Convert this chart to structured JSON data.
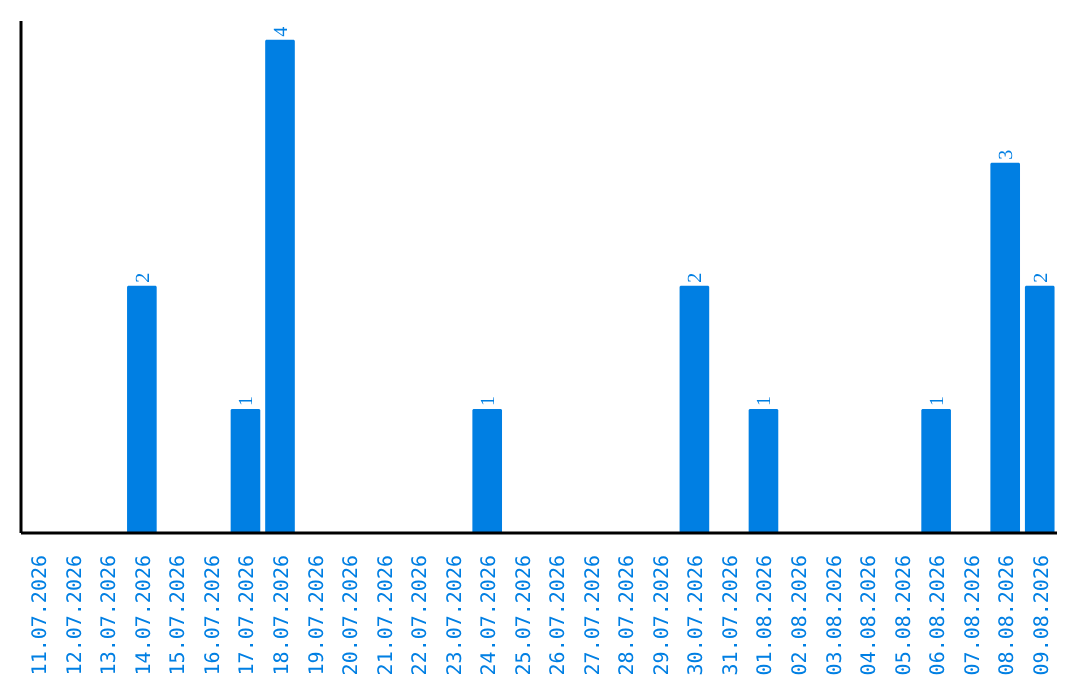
{
  "chart_data": {
    "type": "bar",
    "categories": [
      "11.07.2026",
      "12.07.2026",
      "13.07.2026",
      "14.07.2026",
      "15.07.2026",
      "16.07.2026",
      "17.07.2026",
      "18.07.2026",
      "19.07.2026",
      "20.07.2026",
      "21.07.2026",
      "22.07.2026",
      "23.07.2026",
      "24.07.2026",
      "25.07.2026",
      "26.07.2026",
      "27.07.2026",
      "28.07.2026",
      "29.07.2026",
      "30.07.2026",
      "31.07.2026",
      "01.08.2026",
      "02.08.2026",
      "03.08.2026",
      "04.08.2026",
      "05.08.2026",
      "06.08.2026",
      "07.08.2026",
      "08.08.2026",
      "09.08.2026"
    ],
    "values": [
      0,
      0,
      0,
      2,
      0,
      0,
      1,
      4,
      0,
      0,
      0,
      0,
      0,
      1,
      0,
      0,
      0,
      0,
      0,
      2,
      0,
      1,
      0,
      0,
      0,
      0,
      1,
      0,
      3,
      2
    ],
    "value_labels": [
      null,
      null,
      null,
      "2",
      null,
      null,
      "1",
      "4",
      null,
      null,
      null,
      null,
      null,
      "1",
      null,
      null,
      null,
      null,
      null,
      "2",
      null,
      "1",
      null,
      null,
      null,
      null,
      "1",
      null,
      "3",
      "2"
    ],
    "color": "#007fe3",
    "ylim": [
      0,
      4.16
    ],
    "tick_labels": "x",
    "grid": false
  }
}
